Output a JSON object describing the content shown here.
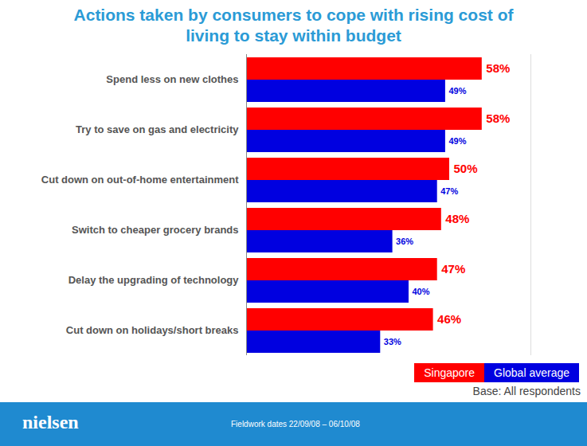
{
  "chart_data": {
    "type": "bar",
    "orientation": "horizontal",
    "title": "Actions taken by consumers to cope with rising cost of living to stay within budget",
    "categories": [
      "Spend less on new clothes",
      "Try to save on gas and electricity",
      "Cut down on out-of-home entertainment",
      "Switch to cheaper grocery brands",
      "Delay the upgrading of technology",
      "Cut down on holidays/short breaks"
    ],
    "series": [
      {
        "name": "Singapore",
        "color": "#ff0000",
        "values": [
          58,
          58,
          50,
          48,
          47,
          46
        ],
        "value_labels": [
          "58%",
          "58%",
          "50%",
          "48%",
          "47%",
          "46%"
        ]
      },
      {
        "name": "Global average",
        "color": "#0000e0",
        "values": [
          49,
          49,
          47,
          36,
          40,
          33
        ],
        "value_labels": [
          "49%",
          "49%",
          "47%",
          "36%",
          "40%",
          "33%"
        ]
      }
    ],
    "xlim": [
      0,
      70
    ],
    "data_labels": true,
    "tick_labels": "y",
    "legend": "bottom-right",
    "note": "Base: All respondents"
  },
  "footer": {
    "logo": "nielsen",
    "text": "Fieldwork dates 22/09/08 – 06/10/08"
  }
}
